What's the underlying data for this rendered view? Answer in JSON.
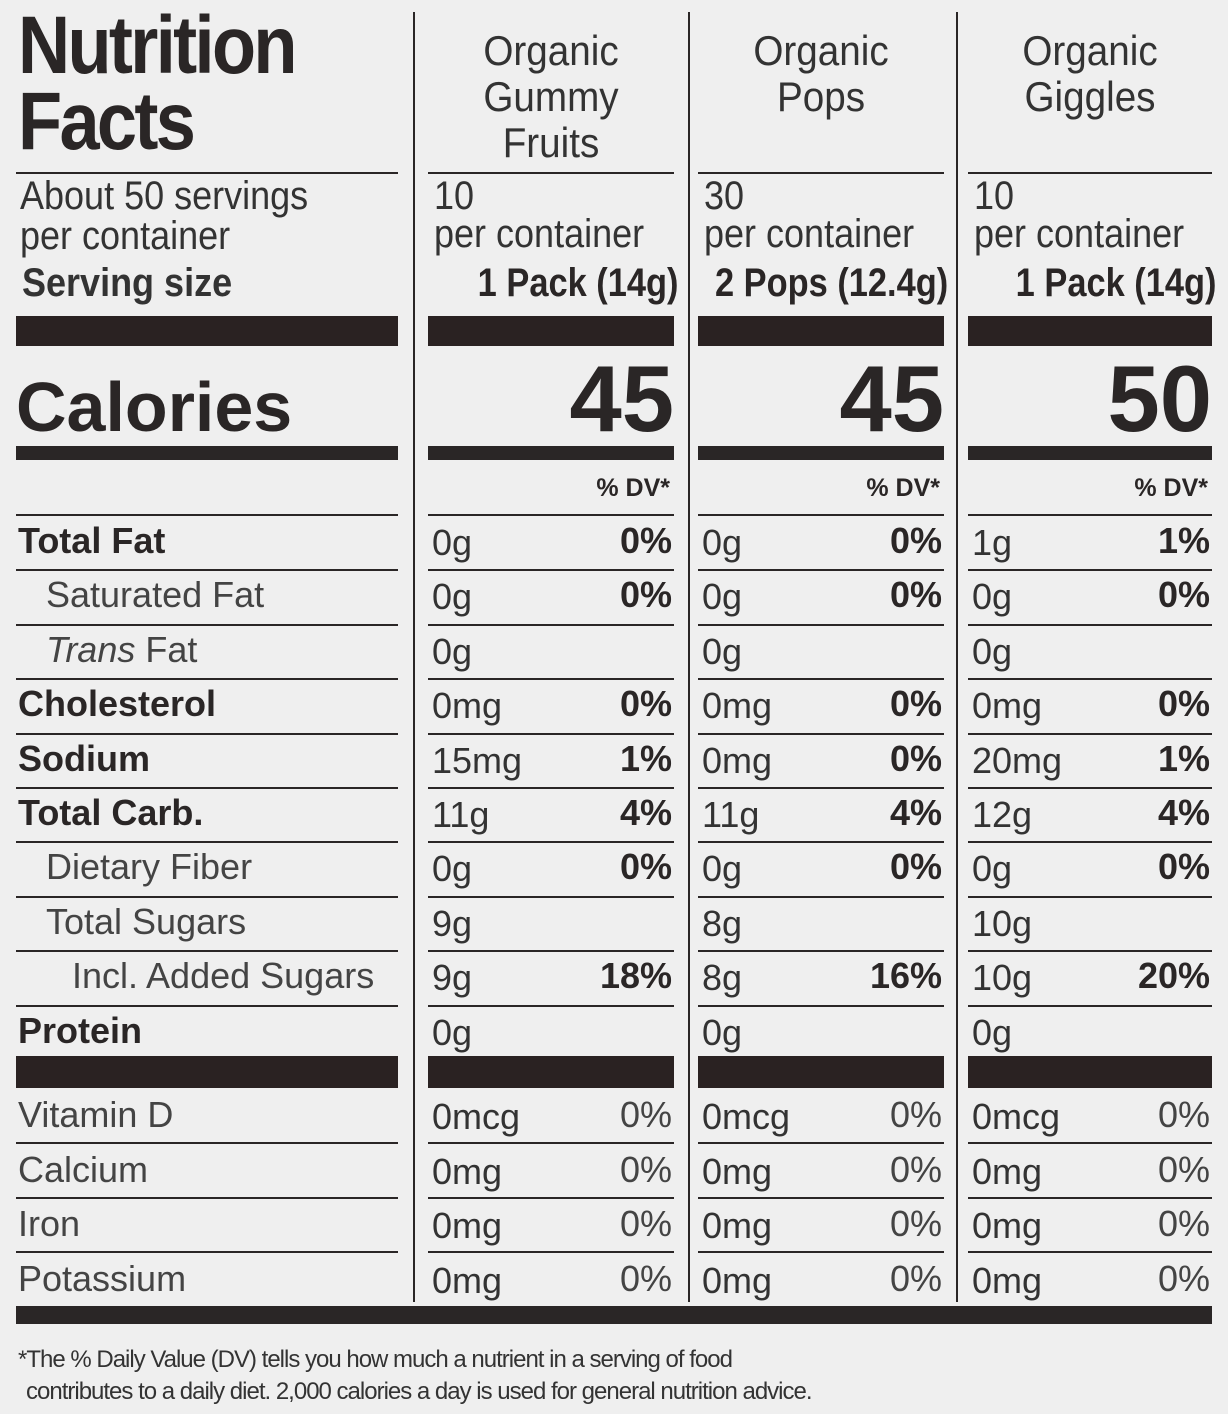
{
  "title": [
    "Nutrition",
    "Facts"
  ],
  "servings_note": [
    "About 50 servings",
    "per container"
  ],
  "serving_size_label": "Serving size",
  "calories_label": "Calories",
  "dv_label": "% DV*",
  "products": [
    {
      "name": [
        "Organic",
        "Gummy",
        "Fruits"
      ],
      "per_container_count": "10",
      "per_container_label": "per container",
      "serving_size": "1 Pack (14g)",
      "calories": "45"
    },
    {
      "name": [
        "Organic",
        "Pops"
      ],
      "per_container_count": "30",
      "per_container_label": "per container",
      "serving_size": "2 Pops (12.4g)",
      "calories": "45"
    },
    {
      "name": [
        "Organic",
        "Giggles"
      ],
      "per_container_count": "10",
      "per_container_label": "per container",
      "serving_size": "1 Pack (14g)",
      "calories": "50"
    }
  ],
  "nutrients": [
    {
      "label": "Total Fat",
      "style": "bold",
      "values": [
        [
          "0g",
          "0%"
        ],
        [
          "0g",
          "0%"
        ],
        [
          "1g",
          "1%"
        ]
      ]
    },
    {
      "label": "Saturated Fat",
      "style": "indent",
      "values": [
        [
          "0g",
          "0%"
        ],
        [
          "0g",
          "0%"
        ],
        [
          "0g",
          "0%"
        ]
      ]
    },
    {
      "label_italic": "Trans",
      "label": " Fat",
      "style": "indent",
      "values": [
        [
          "0g",
          ""
        ],
        [
          "0g",
          ""
        ],
        [
          "0g",
          ""
        ]
      ]
    },
    {
      "label": "Cholesterol",
      "style": "bold",
      "values": [
        [
          "0mg",
          "0%"
        ],
        [
          "0mg",
          "0%"
        ],
        [
          "0mg",
          "0%"
        ]
      ]
    },
    {
      "label": "Sodium",
      "style": "bold",
      "values": [
        [
          "15mg",
          "1%"
        ],
        [
          "0mg",
          "0%"
        ],
        [
          "20mg",
          "1%"
        ]
      ]
    },
    {
      "label": "Total Carb.",
      "style": "bold",
      "values": [
        [
          "11g",
          "4%"
        ],
        [
          "11g",
          "4%"
        ],
        [
          "12g",
          "4%"
        ]
      ]
    },
    {
      "label": "Dietary Fiber",
      "style": "indent",
      "values": [
        [
          "0g",
          "0%"
        ],
        [
          "0g",
          "0%"
        ],
        [
          "0g",
          "0%"
        ]
      ]
    },
    {
      "label": "Total Sugars",
      "style": "indent",
      "values": [
        [
          "9g",
          ""
        ],
        [
          "8g",
          ""
        ],
        [
          "10g",
          ""
        ]
      ]
    },
    {
      "label": "Incl. Added Sugars",
      "style": "indent2",
      "values": [
        [
          "9g",
          "18%"
        ],
        [
          "8g",
          "16%"
        ],
        [
          "10g",
          "20%"
        ]
      ]
    },
    {
      "label": "Protein",
      "style": "bold",
      "values": [
        [
          "0g",
          ""
        ],
        [
          "0g",
          ""
        ],
        [
          "0g",
          ""
        ]
      ]
    }
  ],
  "vitamins": [
    {
      "label": "Vitamin D",
      "values": [
        [
          "0mcg",
          "0%"
        ],
        [
          "0mcg",
          "0%"
        ],
        [
          "0mcg",
          "0%"
        ]
      ]
    },
    {
      "label": "Calcium",
      "values": [
        [
          "0mg",
          "0%"
        ],
        [
          "0mg",
          "0%"
        ],
        [
          "0mg",
          "0%"
        ]
      ]
    },
    {
      "label": "Iron",
      "values": [
        [
          "0mg",
          "0%"
        ],
        [
          "0mg",
          "0%"
        ],
        [
          "0mg",
          "0%"
        ]
      ]
    },
    {
      "label": "Potassium",
      "values": [
        [
          "0mg",
          "0%"
        ],
        [
          "0mg",
          "0%"
        ],
        [
          "0mg",
          "0%"
        ]
      ]
    }
  ],
  "footnote": [
    "*The % Daily Value (DV) tells you how much a nutrient in a serving of food",
    "contributes to a daily diet. 2,000 calories a day is used for general nutrition advice."
  ]
}
